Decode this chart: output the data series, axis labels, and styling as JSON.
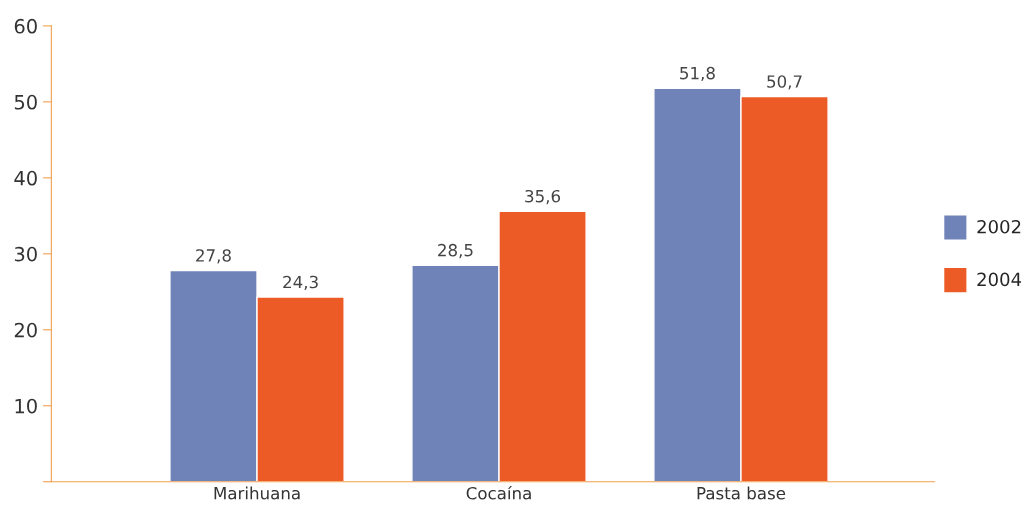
{
  "chart_data": {
    "type": "bar",
    "categories": [
      "Marihuana",
      "Cocaína",
      "Pasta base"
    ],
    "series": [
      {
        "name": "2002",
        "color": "#7083b8",
        "values": [
          27.8,
          28.5,
          51.8
        ],
        "value_labels": [
          "27,8",
          "28,5",
          "51,8"
        ]
      },
      {
        "name": "2004",
        "color": "#ec5a26",
        "values": [
          24.3,
          35.6,
          50.7
        ],
        "value_labels": [
          "24,3",
          "35,6",
          "50,7"
        ]
      }
    ],
    "ylim": [
      0,
      60
    ],
    "yticks": [
      {
        "value": 0,
        "label": null
      },
      10,
      20,
      30,
      40,
      50,
      60
    ],
    "grid": false,
    "legend": "right"
  }
}
